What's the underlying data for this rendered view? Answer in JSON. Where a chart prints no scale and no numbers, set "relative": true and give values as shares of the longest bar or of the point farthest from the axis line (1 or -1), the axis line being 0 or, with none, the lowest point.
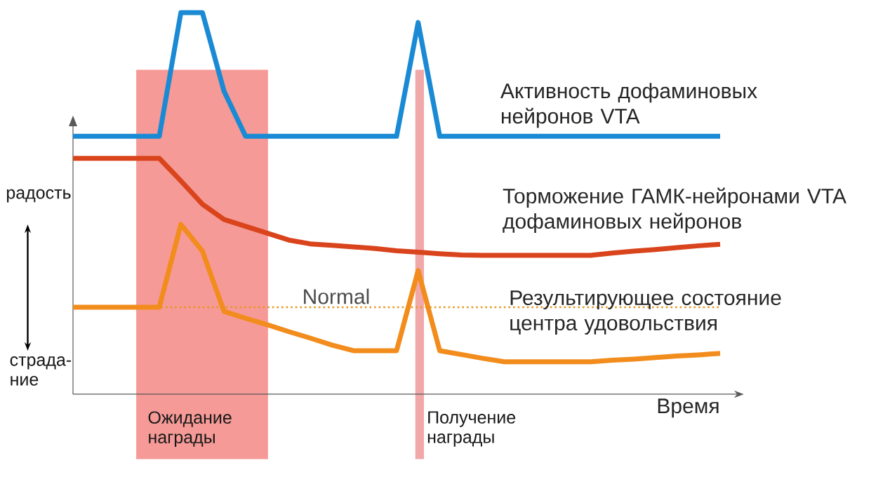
{
  "chart_data": {
    "type": "line",
    "relative": true,
    "line_style": "solid",
    "marker": "none",
    "xlabel": "Время",
    "categories": [
      null,
      null,
      null,
      null,
      null,
      null,
      null,
      null,
      null,
      null,
      null,
      null,
      null,
      null,
      null,
      null,
      null,
      null,
      null,
      null,
      null,
      null,
      null,
      null,
      null,
      null,
      null,
      null,
      null,
      null,
      null
    ],
    "series": [
      {
        "name": "Активность дофаминовых нейронов VTA",
        "color": "#1a8ad4",
        "values": [
          0.676,
          0.676,
          0.676,
          0.676,
          0.676,
          1,
          1,
          0.794,
          0.676,
          0.676,
          0.676,
          0.676,
          0.676,
          0.676,
          0.676,
          0.676,
          0.974,
          0.676,
          0.676,
          0.676,
          0.676,
          0.676,
          0.676,
          0.676,
          0.676,
          0.676,
          0.676,
          0.676,
          0.676,
          0.676,
          0.676
        ]
      },
      {
        "name": "Торможение ГАМК-нейронами VTA дофаминовых нейронов",
        "color": "#d9441c",
        "values": [
          0.618,
          0.618,
          0.618,
          0.618,
          0.618,
          0.559,
          0.498,
          0.458,
          0.44,
          0.422,
          0.404,
          0.394,
          0.39,
          0.386,
          0.382,
          0.376,
          0.372,
          0.368,
          0.365,
          0.364,
          0.364,
          0.364,
          0.364,
          0.364,
          0.364,
          0.37,
          0.375,
          0.379,
          0.384,
          0.389,
          0.393
        ]
      },
      {
        "name": "Результирующее состояние центра удовольствия",
        "color": "#f28c1c",
        "values": [
          0.228,
          0.228,
          0.228,
          0.228,
          0.228,
          0.445,
          0.375,
          0.217,
          0.199,
          0.182,
          0.164,
          0.147,
          0.129,
          0.114,
          0.114,
          0.114,
          0.324,
          0.114,
          0.104,
          0.094,
          0.085,
          0.085,
          0.085,
          0.085,
          0.085,
          0.089,
          0.092,
          0.096,
          0.1,
          0.103,
          0.107
        ]
      }
    ],
    "ref_lines": [
      {
        "axis": "y",
        "value": 0.228,
        "label": "Normal",
        "color": "#e8961e",
        "line_style": "dotted"
      }
    ],
    "annotations": [
      "радость",
      "страда-ние",
      "Ожидание награды",
      "Получение награды"
    ]
  }
}
